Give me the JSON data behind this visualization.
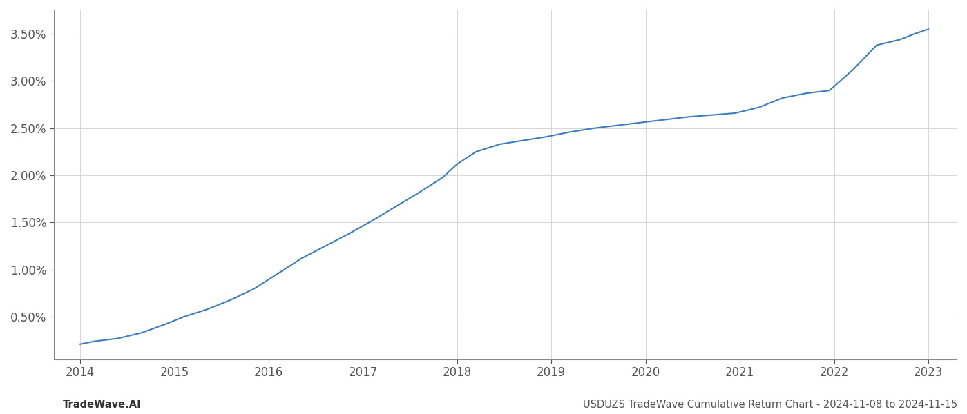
{
  "x_values": [
    2014.0,
    2014.15,
    2014.4,
    2014.65,
    2014.9,
    2015.1,
    2015.35,
    2015.6,
    2015.85,
    2016.1,
    2016.35,
    2016.6,
    2016.85,
    2017.1,
    2017.35,
    2017.6,
    2017.85,
    2018.0,
    2018.2,
    2018.45,
    2018.7,
    2018.95,
    2019.2,
    2019.45,
    2019.7,
    2019.95,
    2020.2,
    2020.45,
    2020.7,
    2020.95,
    2021.2,
    2021.45,
    2021.7,
    2021.95,
    2022.2,
    2022.45,
    2022.7,
    2022.85,
    2023.0
  ],
  "y_values": [
    0.21,
    0.24,
    0.27,
    0.33,
    0.42,
    0.5,
    0.58,
    0.68,
    0.8,
    0.96,
    1.12,
    1.25,
    1.38,
    1.52,
    1.67,
    1.82,
    1.98,
    2.12,
    2.25,
    2.33,
    2.37,
    2.41,
    2.46,
    2.5,
    2.53,
    2.56,
    2.59,
    2.62,
    2.64,
    2.66,
    2.72,
    2.82,
    2.87,
    2.9,
    3.12,
    3.38,
    3.44,
    3.5,
    3.55
  ],
  "line_color": "#3a7ebf",
  "line_width": 1.5,
  "xlim": [
    2013.72,
    2023.3
  ],
  "ylim": [
    0.05,
    3.75
  ],
  "yticks": [
    0.5,
    1.0,
    1.5,
    2.0,
    2.5,
    3.0,
    3.5
  ],
  "xticks": [
    2014,
    2015,
    2016,
    2017,
    2018,
    2019,
    2020,
    2021,
    2022,
    2023
  ],
  "grid_color": "#d0d0d0",
  "grid_linewidth": 0.6,
  "background_color": "#ffffff",
  "footer_left": "TradeWave.AI",
  "footer_right": "USDUZS TradeWave Cumulative Return Chart - 2024-11-08 to 2024-11-15",
  "footer_fontsize": 10.5,
  "tick_fontsize": 12,
  "axis_color": "#888888"
}
